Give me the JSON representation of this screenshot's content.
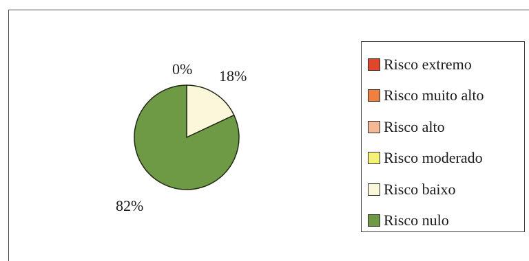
{
  "chart_data": {
    "type": "pie",
    "categories": [
      "Risco extremo",
      "Risco muito alto",
      "Risco alto",
      "Risco moderado",
      "Risco baixo",
      "Risco nulo"
    ],
    "values": [
      0,
      0,
      0,
      0,
      18,
      82
    ],
    "colors": [
      "#e0472a",
      "#f08040",
      "#f5b896",
      "#f4f07a",
      "#fbf7da",
      "#6f9a45"
    ],
    "data_labels": [
      {
        "text": "0%",
        "category": "Risco moderado"
      },
      {
        "text": "18%",
        "category": "Risco baixo"
      },
      {
        "text": "82%",
        "category": "Risco nulo"
      }
    ],
    "legend": {
      "placement": "right",
      "items": [
        {
          "label": "Risco extremo",
          "color": "#e0472a"
        },
        {
          "label": "Risco muito alto",
          "color": "#f08040"
        },
        {
          "label": "Risco alto",
          "color": "#f5b896"
        },
        {
          "label": "Risco moderado",
          "color": "#f4f07a"
        },
        {
          "label": "Risco baixo",
          "color": "#fbf7da"
        },
        {
          "label": "Risco nulo",
          "color": "#6f9a45"
        }
      ]
    },
    "title": "",
    "slice_outline_color": "#1f2a14"
  }
}
